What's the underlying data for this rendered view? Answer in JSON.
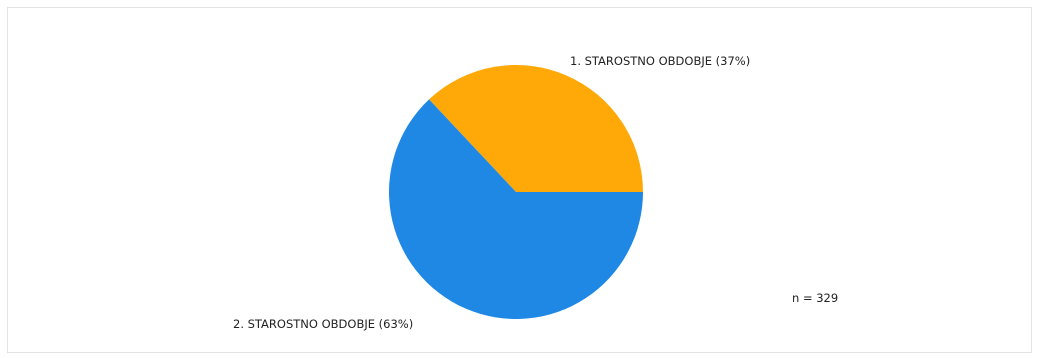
{
  "chart_data": {
    "type": "pie",
    "slices": [
      {
        "label": "1. STAROSTNO OBDOBJE (37%)",
        "value": 37,
        "color": "#FFA909"
      },
      {
        "label": "2. STAROSTNO OBDOBJE (63%)",
        "value": 63,
        "color": "#1F88E5"
      }
    ],
    "annotation": "n = 329"
  }
}
